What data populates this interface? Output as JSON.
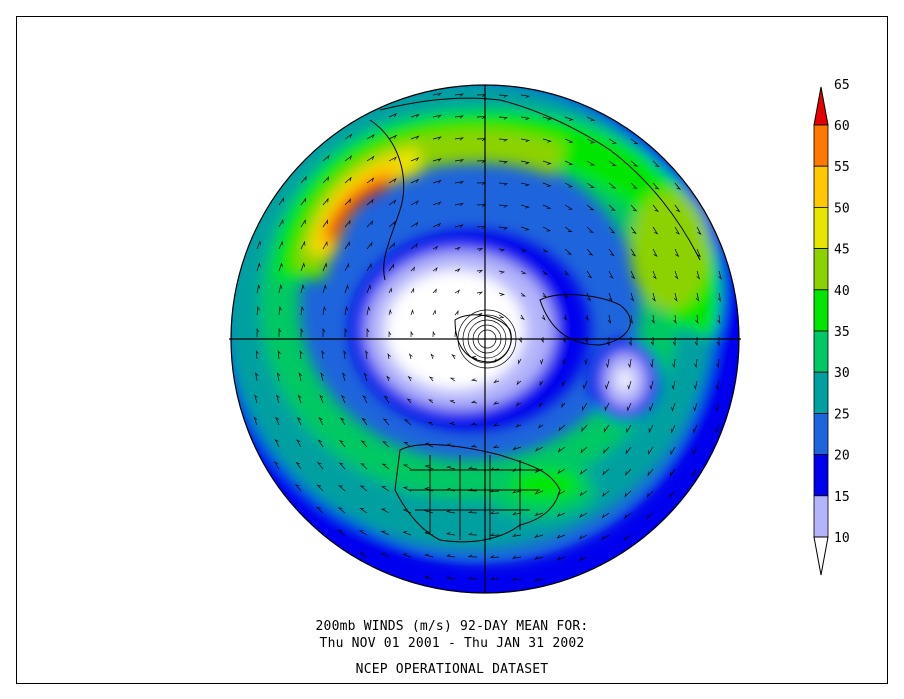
{
  "map": {
    "projection": "polar stereographic, north pole centered",
    "palette": [
      "#ffffff",
      "#b4b4fa",
      "#0000ee",
      "#1e64dc",
      "#00a0a0",
      "#00c864",
      "#00e600",
      "#8cd200",
      "#e6e600",
      "#ffc800",
      "#ff7800",
      "#e60000"
    ]
  },
  "colorbar": {
    "labels": [
      "10",
      "15",
      "20",
      "25",
      "30",
      "35",
      "40",
      "45",
      "50",
      "55",
      "60",
      "65"
    ],
    "colors": [
      "#b4b4fa",
      "#0000ee",
      "#1e64dc",
      "#00a0a0",
      "#00c864",
      "#00e600",
      "#8cd200",
      "#e6e600",
      "#ffc800",
      "#ff7800"
    ],
    "under_color": "#ffffff",
    "over_color": "#e60000"
  },
  "caption": {
    "line1": "200mb WINDS (m/s)   92-DAY MEAN FOR:",
    "line2": "Thu NOV 01 2001 - Thu JAN 31 2002",
    "line3": "NCEP OPERATIONAL DATASET"
  }
}
